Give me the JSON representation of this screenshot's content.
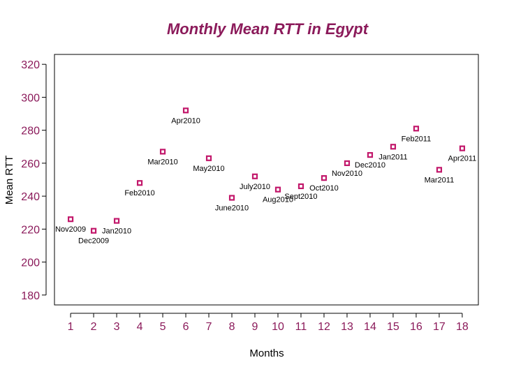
{
  "chart_data": {
    "type": "scatter",
    "title": "Monthly Mean RTT in Egypt",
    "xlabel": "Months",
    "ylabel": "Mean RTT",
    "xlim": [
      0.3,
      18.7
    ],
    "ylim": [
      174,
      326
    ],
    "xticks": [
      1,
      2,
      3,
      4,
      5,
      6,
      7,
      8,
      9,
      10,
      11,
      12,
      13,
      14,
      15,
      16,
      17,
      18
    ],
    "yticks": [
      180,
      200,
      220,
      240,
      260,
      280,
      300,
      320
    ],
    "grid": false,
    "points": [
      {
        "x": 1,
        "y": 226,
        "label": "Nov2009"
      },
      {
        "x": 2,
        "y": 219,
        "label": "Dec2009"
      },
      {
        "x": 3,
        "y": 225,
        "label": "Jan2010"
      },
      {
        "x": 4,
        "y": 248,
        "label": "Feb2010"
      },
      {
        "x": 5,
        "y": 267,
        "label": "Mar2010"
      },
      {
        "x": 6,
        "y": 292,
        "label": "Apr2010"
      },
      {
        "x": 7,
        "y": 263,
        "label": "May2010"
      },
      {
        "x": 8,
        "y": 239,
        "label": "June2010"
      },
      {
        "x": 9,
        "y": 252,
        "label": "July2010"
      },
      {
        "x": 10,
        "y": 244,
        "label": "Aug2010"
      },
      {
        "x": 11,
        "y": 246,
        "label": "Sept2010"
      },
      {
        "x": 12,
        "y": 251,
        "label": "Oct2010"
      },
      {
        "x": 13,
        "y": 260,
        "label": "Nov2010"
      },
      {
        "x": 14,
        "y": 265,
        "label": "Dec2010"
      },
      {
        "x": 15,
        "y": 270,
        "label": "Jan2011"
      },
      {
        "x": 16,
        "y": 281,
        "label": "Feb2011"
      },
      {
        "x": 17,
        "y": 256,
        "label": "Mar2011"
      },
      {
        "x": 18,
        "y": 269,
        "label": "Apr2011"
      }
    ],
    "colors": {
      "title": "#8B1A5A",
      "tick_labels": "#8B1A5A",
      "marker_stroke": "#C2186B",
      "axis": "#000000"
    }
  }
}
